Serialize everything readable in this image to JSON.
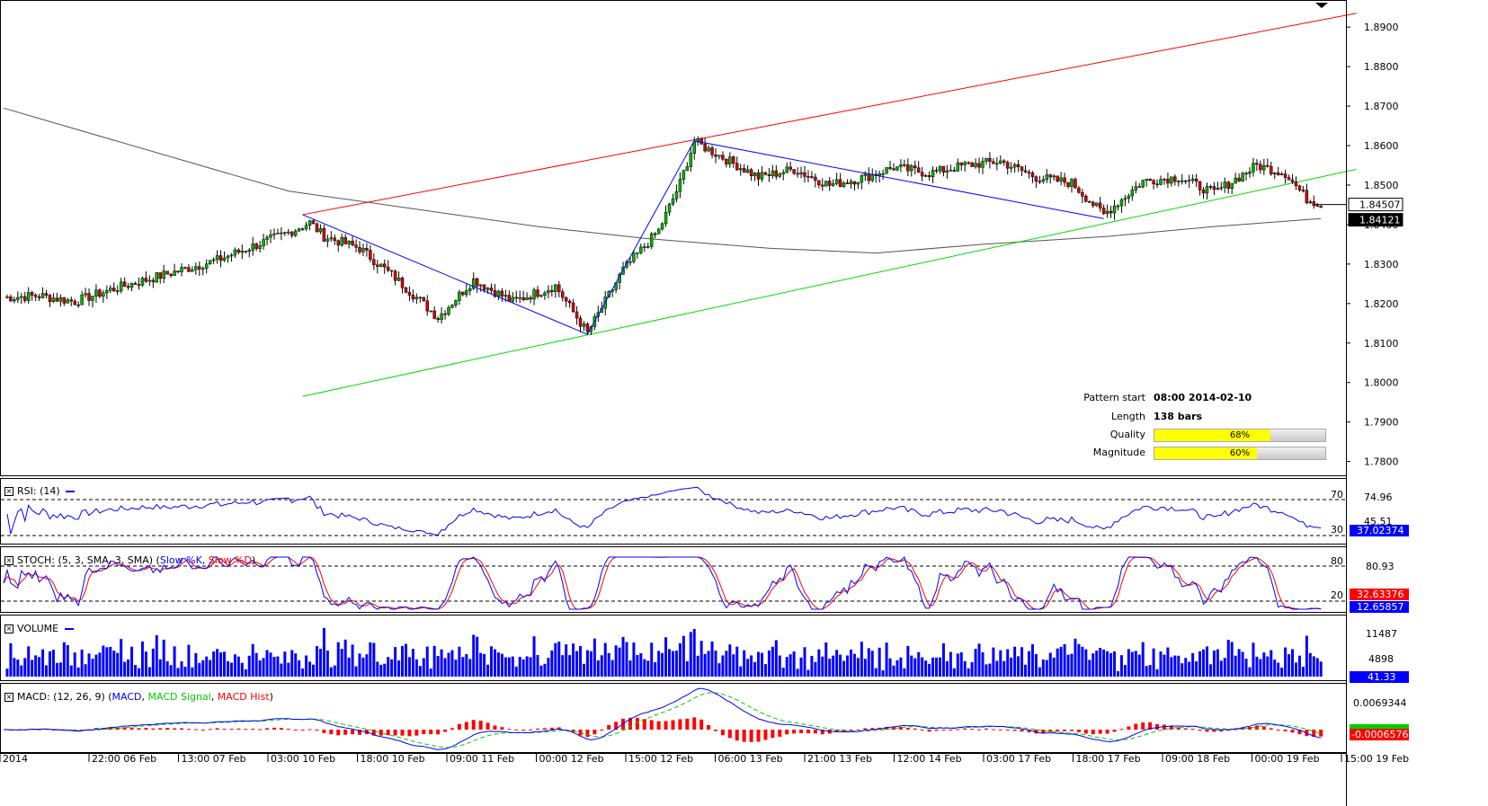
{
  "colors": {
    "up": "#00b400",
    "down": "#d40000",
    "channel_upper": "#ff0000",
    "channel_lower": "#00dd00",
    "pattern_line": "#0000ff",
    "ma": "#555555",
    "rsi": "#0000ff",
    "stoch_k": "#0000ff",
    "stoch_d": "#ff0000",
    "volume": "#0000ff",
    "macd": "#0000ff",
    "macd_signal": "#00cc00",
    "macd_hist": "#ff0000",
    "quality_fill": "#ffff00"
  },
  "info": {
    "pattern_start_label": "Pattern start",
    "pattern_start_value": "08:00 2014-02-10",
    "length_label": "Length",
    "length_value": "138 bars",
    "quality_label": "Quality",
    "quality_value": "68%",
    "quality_fraction": 0.68,
    "magnitude_label": "Magnitude",
    "magnitude_value": "60%",
    "magnitude_fraction": 0.6
  },
  "panels": {
    "rsi": {
      "title": "RSI: (14)",
      "levels": [
        "70",
        "30"
      ],
      "scale_label": "74.96",
      "partial_label": "45.51",
      "current_value": "37.02374"
    },
    "stoch": {
      "title_main": "STOCH: (5, 3, SMA, 3, SMA)",
      "title_k": "Slow %K",
      "title_d": "Slow %D",
      "levels": [
        "80",
        "20"
      ],
      "scale_label": "80.93",
      "current_d": "32.63376",
      "current_k": "12.65857"
    },
    "volume": {
      "title": "VOLUME",
      "scale_labels": [
        "11487",
        "4898"
      ],
      "current_value": "41.33"
    },
    "macd": {
      "title_main": "MACD: (12, 26, 9)",
      "title_macd": "MACD",
      "title_signal": "MACD Signal",
      "title_hist": "MACD Hist",
      "scale_label": "0.0069344",
      "current_value": "-0.0006576"
    }
  },
  "chart_data": {
    "type": "candlestick",
    "symbol_timeframe": "H1",
    "y_axis_ticks": [
      "1.8900",
      "1.8800",
      "1.8700",
      "1.8600",
      "1.8500",
      "1.8400",
      "1.8300",
      "1.8200",
      "1.8100",
      "1.8000",
      "1.7900",
      "1.7800"
    ],
    "ylim": [
      1.7765,
      1.8955
    ],
    "price_labels": [
      "1.84507",
      "1.84121"
    ],
    "x_labels": [
      "2014",
      "22:00 06 Feb",
      "13:00 07 Feb",
      "03:00 10 Feb",
      "18:00 10 Feb",
      "09:00 11 Feb",
      "00:00 12 Feb",
      "15:00 12 Feb",
      "06:00 13 Feb",
      "21:00 13 Feb",
      "12:00 14 Feb",
      "03:00 17 Feb",
      "18:00 17 Feb",
      "09:00 18 Feb",
      "00:00 19 Feb",
      "15:00 19 Feb"
    ],
    "close_path": [
      [
        0,
        1.8215
      ],
      [
        10,
        1.822
      ],
      [
        20,
        1.8205
      ],
      [
        30,
        1.8235
      ],
      [
        40,
        1.826
      ],
      [
        50,
        1.8285
      ],
      [
        60,
        1.831
      ],
      [
        70,
        1.8345
      ],
      [
        80,
        1.838
      ],
      [
        86,
        1.8405
      ],
      [
        90,
        1.837
      ],
      [
        100,
        1.834
      ],
      [
        110,
        1.8265
      ],
      [
        122,
        1.8165
      ],
      [
        132,
        1.826
      ],
      [
        143,
        1.8205
      ],
      [
        155,
        1.8245
      ],
      [
        164,
        1.8125
      ],
      [
        174,
        1.8285
      ],
      [
        184,
        1.8385
      ],
      [
        190,
        1.8505
      ],
      [
        194,
        1.861
      ],
      [
        202,
        1.857
      ],
      [
        212,
        1.852
      ],
      [
        222,
        1.854
      ],
      [
        232,
        1.85
      ],
      [
        242,
        1.852
      ],
      [
        250,
        1.8545
      ],
      [
        260,
        1.853
      ],
      [
        270,
        1.855
      ],
      [
        280,
        1.856
      ],
      [
        290,
        1.852
      ],
      [
        300,
        1.8505
      ],
      [
        309,
        1.8425
      ],
      [
        320,
        1.851
      ],
      [
        330,
        1.852
      ],
      [
        340,
        1.848
      ],
      [
        346,
        1.8515
      ],
      [
        352,
        1.855
      ],
      [
        360,
        1.853
      ],
      [
        366,
        1.8465
      ],
      [
        370,
        1.8452
      ]
    ],
    "candle_count": 370,
    "moving_average": [
      [
        0,
        1.8695
      ],
      [
        80,
        1.8485
      ],
      [
        150,
        1.8395
      ],
      [
        180,
        1.8365
      ],
      [
        215,
        1.834
      ],
      [
        245,
        1.8328
      ],
      [
        275,
        1.835
      ],
      [
        310,
        1.837
      ],
      [
        340,
        1.8395
      ],
      [
        370,
        1.8415
      ]
    ],
    "channel_upper": [
      [
        84,
        1.8425
      ],
      [
        380,
        1.8935
      ]
    ],
    "channel_lower": [
      [
        84,
        1.7965
      ],
      [
        380,
        1.854
      ]
    ],
    "pattern_lines": [
      [
        84,
        1.8425
      ],
      [
        164,
        1.8122
      ],
      [
        194,
        1.8612
      ],
      [
        309,
        1.8415
      ]
    ]
  }
}
